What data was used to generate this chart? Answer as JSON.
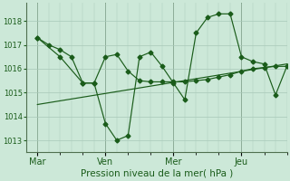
{
  "background_color": "#cce8d8",
  "line_color": "#1a5c1a",
  "grid_color": "#a8c8b8",
  "xlabel": "Pression niveau de la mer( hPa )",
  "ylim": [
    1012.5,
    1018.75
  ],
  "yticks": [
    1013,
    1014,
    1015,
    1016,
    1017,
    1018
  ],
  "day_labels": [
    "Mar",
    "Ven",
    "Mer",
    "Jeu"
  ],
  "day_positions": [
    0,
    30,
    60,
    90
  ],
  "xlim": [
    -5,
    110
  ],
  "series1_x": [
    0,
    5,
    10,
    15,
    20,
    25,
    30,
    35,
    40,
    45,
    50,
    55,
    60,
    65,
    70,
    75,
    80,
    85,
    90,
    95,
    100,
    105,
    110
  ],
  "series1_y": [
    1017.3,
    1017.0,
    1016.8,
    1016.5,
    1015.4,
    1015.4,
    1016.5,
    1016.6,
    1015.9,
    1015.5,
    1015.45,
    1015.45,
    1015.45,
    1015.45,
    1015.5,
    1015.55,
    1015.65,
    1015.75,
    1015.9,
    1016.0,
    1016.05,
    1016.1,
    1016.1
  ],
  "series2_x": [
    0,
    10,
    20,
    25,
    30,
    35,
    40,
    45,
    50,
    55,
    60,
    65,
    70,
    75,
    80,
    85,
    90,
    95,
    100,
    105,
    110
  ],
  "series2_y": [
    1017.3,
    1016.5,
    1015.4,
    1015.4,
    1013.7,
    1013.0,
    1013.2,
    1016.5,
    1016.7,
    1016.1,
    1015.4,
    1014.7,
    1017.5,
    1018.15,
    1018.3,
    1018.3,
    1016.5,
    1016.3,
    1016.2,
    1014.9,
    1016.1
  ],
  "series3_x": [
    0,
    110
  ],
  "series3_y": [
    1014.5,
    1016.2
  ]
}
